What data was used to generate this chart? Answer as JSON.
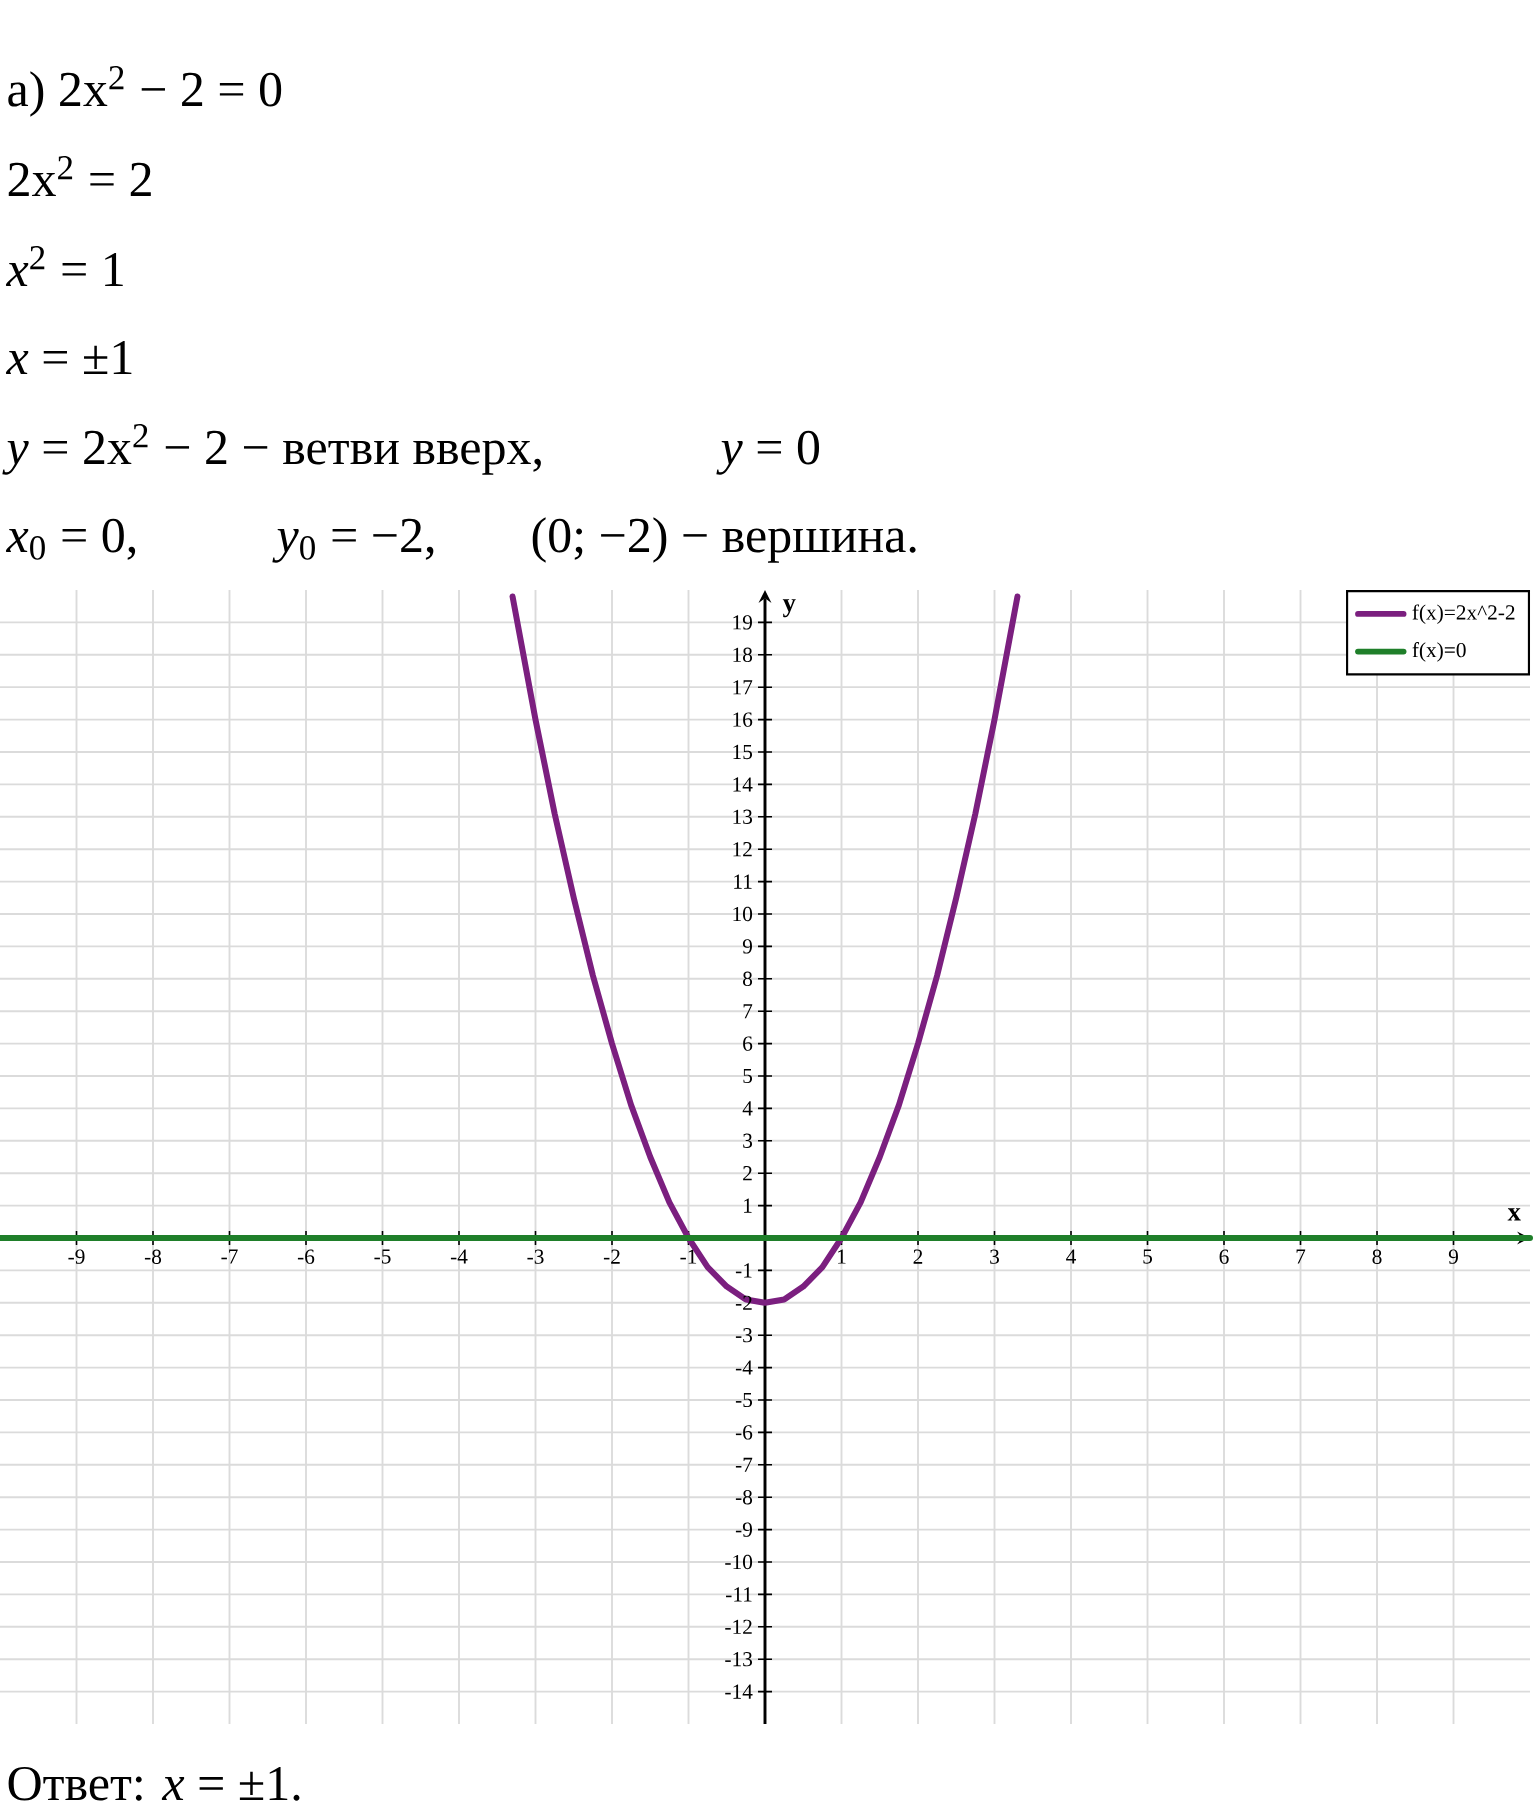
{
  "chart_data": {
    "type": "line",
    "annotations": [
      "а) 2x$^{2}$ − 2 = 0",
      "2x$^{2}$ = 2",
      "*x*$^{2}$ = 1",
      "*x* = ±1",
      "*y* = 2x$^{2}$ − 2 − ветви вверх,",
      "*y* = 0",
      "*x*$_{0}$ = 0,",
      "*y*$_{0}$ = −2,",
      "(0; −2) − вершина.",
      "Ответ: *x* = ±1."
    ],
    "xlabel": "x",
    "ylabel": "y",
    "xlim": [
      -10,
      10
    ],
    "ylim": [
      -15,
      20
    ],
    "xticks": [
      -9,
      -8,
      -7,
      -6,
      -5,
      -4,
      -3,
      -2,
      -1,
      1,
      2,
      3,
      4,
      5,
      6,
      7,
      8,
      9
    ],
    "yticks": [
      -14,
      -13,
      -12,
      -11,
      -10,
      -9,
      -8,
      -7,
      -6,
      -5,
      -4,
      -3,
      -2,
      -1,
      1,
      2,
      3,
      4,
      5,
      6,
      7,
      8,
      9,
      10,
      11,
      12,
      13,
      14,
      15,
      16,
      17,
      18,
      19
    ],
    "grid": true,
    "legend": "top right",
    "series": [
      {
        "name": "f(x)=2x^2-2",
        "color": "#7b1f7f",
        "x": [
          -3.3,
          -3,
          -2.75,
          -2.5,
          -2.25,
          -2,
          -1.75,
          -1.5,
          -1.25,
          -1,
          -0.75,
          -0.5,
          -0.25,
          0,
          0.25,
          0.5,
          0.75,
          1,
          1.25,
          1.5,
          1.75,
          2,
          2.25,
          2.5,
          2.75,
          3,
          3.3
        ],
        "values": [
          19.8,
          16,
          13.1,
          10.5,
          8.1,
          6,
          4.1,
          2.5,
          1.1,
          0,
          -0.9,
          -1.5,
          -1.9,
          -2,
          -1.9,
          -1.5,
          -0.9,
          0,
          1.1,
          2.5,
          4.1,
          6,
          8.1,
          10.5,
          13.1,
          16,
          19.8
        ]
      },
      {
        "name": "f(x)=0",
        "color": "#1f7f2a",
        "x": [
          -10,
          10
        ],
        "values": [
          0,
          0
        ]
      }
    ]
  }
}
